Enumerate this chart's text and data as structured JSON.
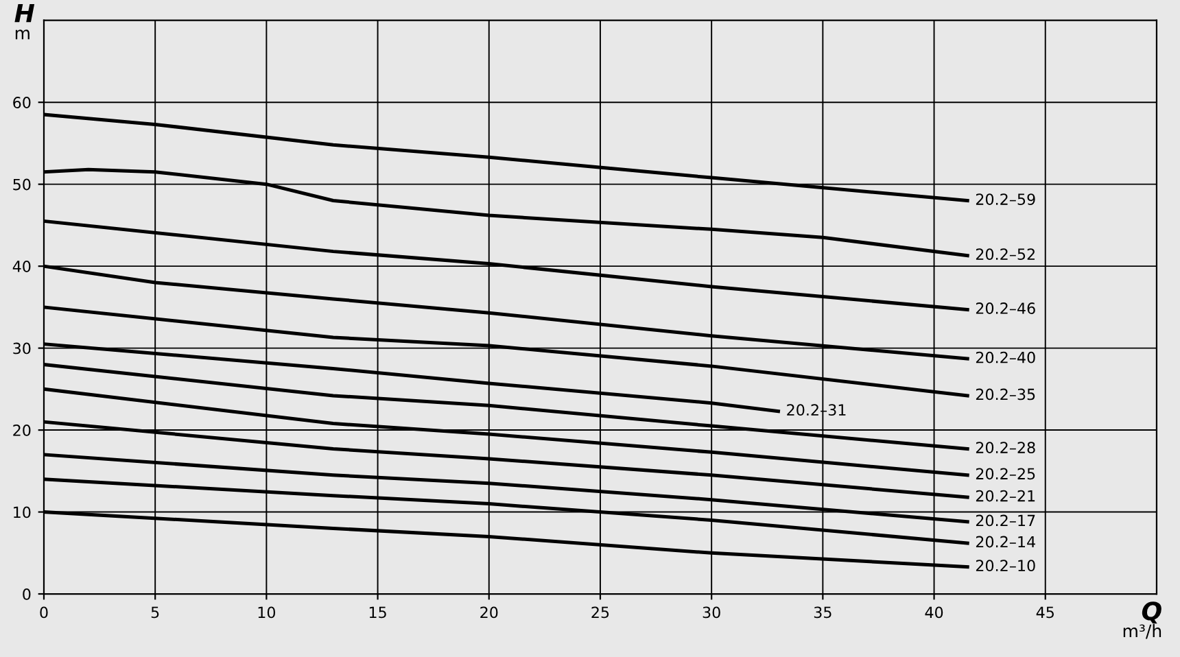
{
  "chart_data": {
    "type": "line",
    "ylabel": "H\nm",
    "xlabel": "Q\nm³/h",
    "xlim": [
      0,
      50
    ],
    "xticks": [
      0,
      5,
      10,
      15,
      20,
      25,
      30,
      35,
      40,
      45
    ],
    "ylim": [
      0,
      70
    ],
    "yticks": [
      0,
      10,
      20,
      30,
      40,
      50,
      60
    ],
    "grid": true,
    "legend": false,
    "marker": "none",
    "line_style": "solid",
    "series": [
      {
        "name": "20.2–59",
        "color": "#000000",
        "x": [
          0,
          5,
          13,
          20,
          30,
          41.5
        ],
        "values": [
          58.5,
          57.3,
          54.8,
          53.3,
          50.8,
          48
        ]
      },
      {
        "name": "20.2–52",
        "color": "#000000",
        "x": [
          0,
          2,
          5,
          10,
          13,
          20,
          30,
          35,
          41.5
        ],
        "values": [
          51.5,
          51.8,
          51.5,
          50,
          48,
          46.2,
          44.5,
          43.5,
          41.3
        ]
      },
      {
        "name": "20.2–46",
        "color": "#000000",
        "x": [
          0,
          13,
          20,
          30,
          41.5
        ],
        "values": [
          45.5,
          41.8,
          40.3,
          37.5,
          34.7
        ]
      },
      {
        "name": "20.2–40",
        "color": "#000000",
        "x": [
          0,
          5,
          13,
          20,
          30,
          41.5
        ],
        "values": [
          40,
          38,
          36,
          34.3,
          31.5,
          28.7
        ]
      },
      {
        "name": "20.2–35",
        "color": "#000000",
        "x": [
          0,
          13,
          20,
          30,
          41.5
        ],
        "values": [
          35,
          31.3,
          30.3,
          27.8,
          24.2
        ]
      },
      {
        "name": "20.2–31",
        "color": "#000000",
        "x": [
          0,
          13,
          20,
          30,
          33
        ],
        "values": [
          30.5,
          27.5,
          25.7,
          23.3,
          22.3
        ]
      },
      {
        "name": "20.2–28",
        "color": "#000000",
        "x": [
          0,
          13,
          20,
          30,
          41.5
        ],
        "values": [
          28,
          24.2,
          23,
          20.5,
          17.7
        ]
      },
      {
        "name": "20.2–25",
        "color": "#000000",
        "x": [
          0,
          13,
          20,
          30,
          41.5
        ],
        "values": [
          25,
          20.8,
          19.5,
          17.3,
          14.5
        ]
      },
      {
        "name": "20.2–21",
        "color": "#000000",
        "x": [
          0,
          13,
          20,
          30,
          41.5
        ],
        "values": [
          21,
          17.7,
          16.5,
          14.5,
          11.8
        ]
      },
      {
        "name": "20.2–17",
        "color": "#000000",
        "x": [
          0,
          13,
          20,
          30,
          41.5
        ],
        "values": [
          17,
          14.5,
          13.5,
          11.5,
          8.8
        ]
      },
      {
        "name": "20.2–14",
        "color": "#000000",
        "x": [
          0,
          13,
          20,
          30,
          41.5
        ],
        "values": [
          14,
          12,
          11,
          9,
          6.2
        ]
      },
      {
        "name": "20.2–10",
        "color": "#000000",
        "x": [
          0,
          13,
          20,
          30,
          41.5
        ],
        "values": [
          10,
          8,
          7,
          5,
          3.3
        ]
      }
    ]
  }
}
